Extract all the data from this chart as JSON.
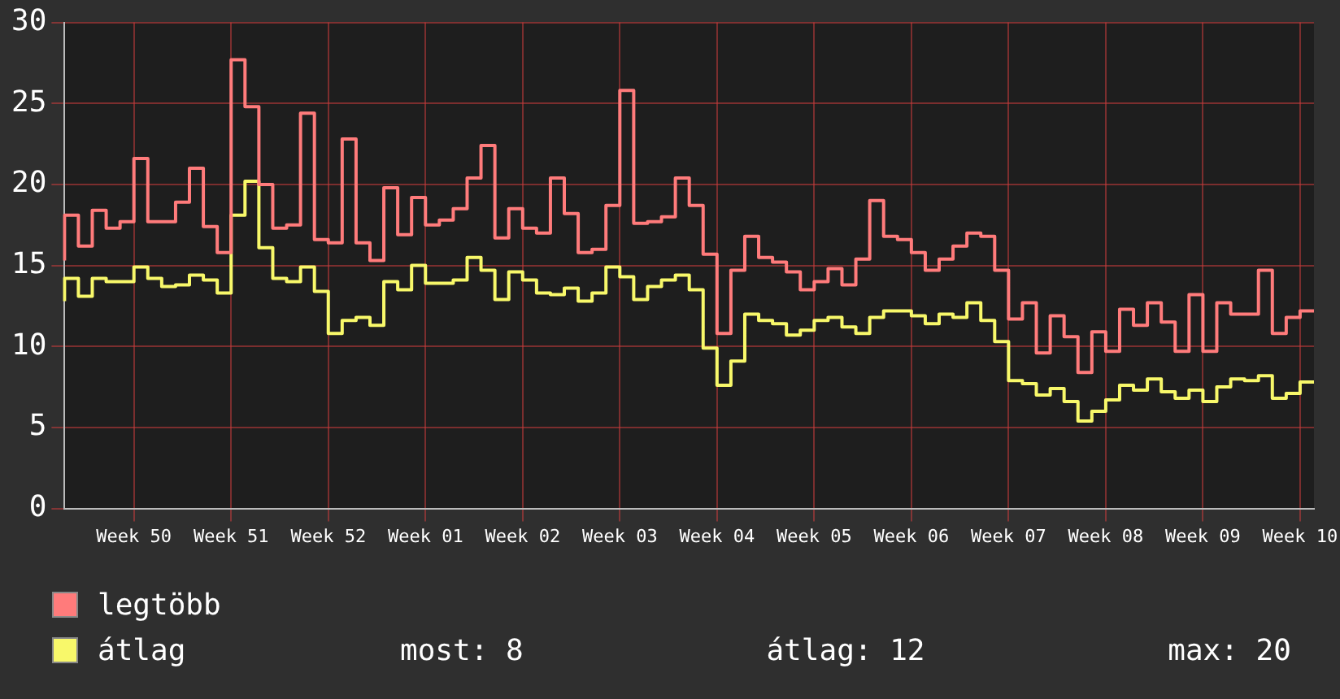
{
  "chart_data": {
    "type": "step",
    "categories": [
      null,
      null,
      null,
      null,
      null,
      "Week 50",
      null,
      null,
      null,
      null,
      null,
      null,
      "Week 51",
      null,
      null,
      null,
      null,
      null,
      null,
      "Week 52",
      null,
      null,
      null,
      null,
      null,
      null,
      "Week 01",
      null,
      null,
      null,
      null,
      null,
      null,
      "Week 02",
      null,
      null,
      null,
      null,
      null,
      null,
      "Week 03",
      null,
      null,
      null,
      null,
      null,
      null,
      "Week 04",
      null,
      null,
      null,
      null,
      null,
      null,
      "Week 05",
      null,
      null,
      null,
      null,
      null,
      null,
      "Week 06",
      null,
      null,
      null,
      null,
      null,
      null,
      "Week 07",
      null,
      null,
      null,
      null,
      null,
      null,
      "Week 08",
      null,
      null,
      null,
      null,
      null,
      null,
      "Week 09",
      null,
      null,
      null,
      null,
      null,
      null,
      "Week 10",
      null
    ],
    "series": [
      {
        "name": "legtöbb",
        "color": "#ff7b7b",
        "values": [
          15.3,
          18.1,
          16.2,
          18.4,
          17.3,
          17.7,
          21.6,
          17.7,
          17.7,
          18.9,
          21.0,
          17.4,
          15.8,
          27.7,
          24.8,
          20.0,
          17.3,
          17.5,
          24.4,
          16.6,
          16.4,
          22.8,
          16.4,
          15.3,
          19.8,
          16.9,
          19.2,
          17.5,
          17.8,
          18.5,
          20.4,
          22.4,
          16.7,
          18.5,
          17.3,
          17.0,
          20.4,
          18.2,
          15.8,
          16.0,
          18.7,
          25.8,
          17.6,
          17.7,
          18.0,
          20.4,
          18.7,
          15.7,
          10.8,
          14.7,
          16.8,
          15.5,
          15.2,
          14.6,
          13.5,
          14.0,
          14.8,
          13.8,
          15.4,
          19.0,
          16.8,
          16.6,
          15.8,
          14.7,
          15.4,
          16.2,
          17.0,
          16.8,
          14.7,
          11.7,
          12.7,
          9.6,
          11.9,
          10.6,
          8.4,
          10.9,
          9.7,
          12.3,
          11.3,
          12.7,
          11.5,
          9.7,
          13.2,
          9.7,
          12.7,
          12.0,
          12.0,
          14.7,
          10.8,
          11.8,
          12.2
        ]
      },
      {
        "name": "átlag",
        "color": "#f8f86a",
        "values": [
          12.8,
          14.2,
          13.1,
          14.2,
          14.0,
          14.0,
          14.9,
          14.2,
          13.7,
          13.8,
          14.4,
          14.1,
          13.3,
          18.1,
          20.2,
          16.1,
          14.2,
          14.0,
          14.9,
          13.4,
          10.8,
          11.6,
          11.8,
          11.3,
          14.0,
          13.5,
          15.0,
          13.9,
          13.9,
          14.1,
          15.5,
          14.7,
          12.9,
          14.6,
          14.1,
          13.3,
          13.2,
          13.6,
          12.8,
          13.3,
          14.9,
          14.3,
          12.9,
          13.7,
          14.1,
          14.4,
          13.5,
          9.9,
          7.6,
          9.1,
          12.0,
          11.6,
          11.4,
          10.7,
          11.0,
          11.6,
          11.8,
          11.2,
          10.8,
          11.8,
          12.2,
          12.2,
          11.9,
          11.4,
          12.0,
          11.8,
          12.7,
          11.6,
          10.3,
          7.9,
          7.7,
          7.0,
          7.4,
          6.6,
          5.4,
          6.0,
          6.7,
          7.6,
          7.3,
          8.0,
          7.2,
          6.8,
          7.3,
          6.6,
          7.5,
          8.0,
          7.9,
          8.2,
          6.8,
          7.1,
          7.8
        ]
      }
    ],
    "ylim": [
      0,
      30
    ],
    "yticks": [
      0,
      5,
      10,
      15,
      20,
      25,
      30
    ],
    "grid": true,
    "legend": "bottom left",
    "marker": "none",
    "line_style": "solid",
    "annotations": [
      "most: 8",
      "átlag: 12",
      "max: 20"
    ]
  }
}
